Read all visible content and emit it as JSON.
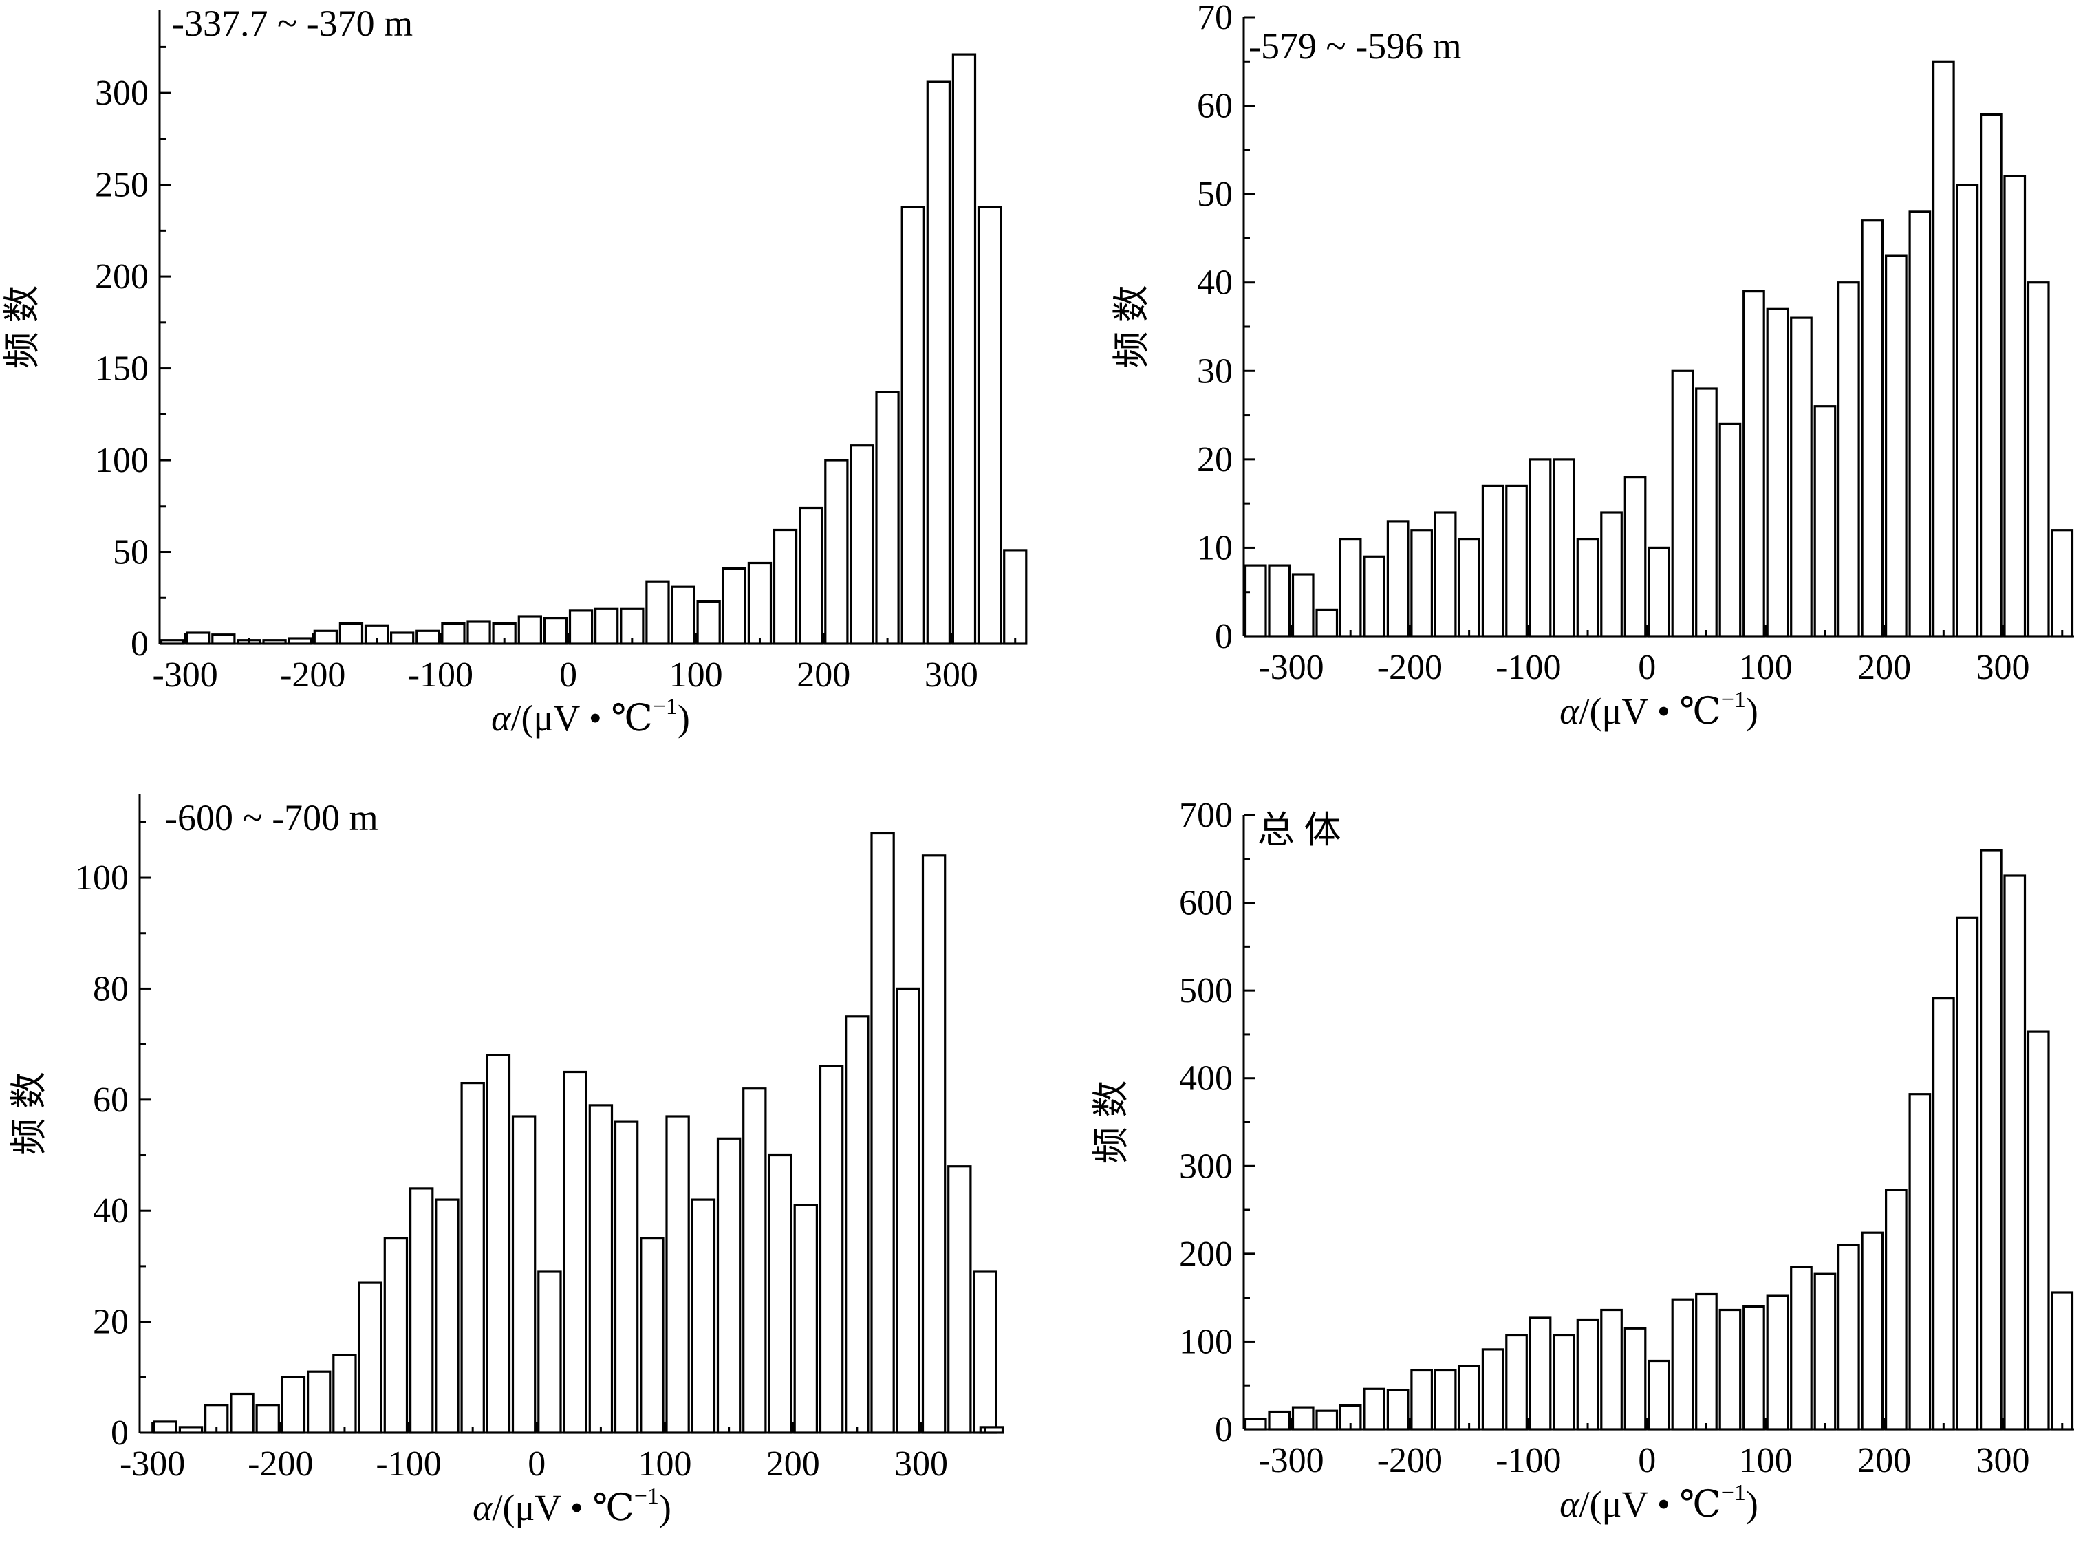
{
  "chart_data": [
    {
      "type": "bar",
      "title": "-337.7 ~ -370 m",
      "xlabel_prefix": "α",
      "xlabel_unit": "/(μV • ℃",
      "xlabel_exp": "−1",
      "xlabel_close": ")",
      "ylabel": "频 数",
      "xlim": [
        -320,
        355
      ],
      "ylim": [
        0,
        345
      ],
      "xticks": [
        -300,
        -200,
        -100,
        0,
        100,
        200,
        300
      ],
      "yticks": [
        0,
        50,
        100,
        150,
        200,
        250,
        300
      ],
      "bin_width": 20,
      "x": [
        -310,
        -290,
        -270,
        -250,
        -230,
        -210,
        -190,
        -170,
        -150,
        -130,
        -110,
        -90,
        -70,
        -50,
        -30,
        -10,
        10,
        30,
        50,
        70,
        90,
        110,
        130,
        150,
        170,
        190,
        210,
        230,
        250,
        270,
        290,
        310,
        330,
        350
      ],
      "values": [
        2,
        6,
        5,
        2,
        2,
        3,
        7,
        11,
        10,
        6,
        7,
        11,
        12,
        11,
        15,
        14,
        18,
        19,
        19,
        34,
        31,
        23,
        41,
        44,
        62,
        74,
        100,
        108,
        137,
        238,
        306,
        321,
        238,
        51
      ],
      "grid": false
    },
    {
      "type": "bar",
      "title": "-579 ~ -596 m",
      "xlabel_prefix": "α",
      "xlabel_unit": "/(μV • ℃",
      "xlabel_exp": "−1",
      "xlabel_close": ")",
      "ylabel": "频 数",
      "xlim": [
        -340,
        360
      ],
      "ylim": [
        0,
        70
      ],
      "xticks": [
        -300,
        -200,
        -100,
        0,
        100,
        200,
        300
      ],
      "yticks": [
        0,
        10,
        20,
        30,
        40,
        50,
        60,
        70
      ],
      "bin_width": 20,
      "x": [
        -330,
        -310,
        -290,
        -270,
        -250,
        -230,
        -210,
        -190,
        -170,
        -150,
        -130,
        -110,
        -90,
        -70,
        -50,
        -30,
        -10,
        10,
        30,
        50,
        70,
        90,
        110,
        130,
        150,
        170,
        190,
        210,
        230,
        250,
        270,
        290,
        310,
        330,
        350
      ],
      "values": [
        8,
        8,
        7,
        3,
        11,
        9,
        13,
        12,
        14,
        11,
        17,
        17,
        20,
        20,
        11,
        14,
        18,
        10,
        30,
        28,
        24,
        39,
        37,
        36,
        26,
        40,
        47,
        43,
        48,
        65,
        51,
        59,
        52,
        40,
        12
      ],
      "grid": false
    },
    {
      "type": "bar",
      "title": "-600 ~ -700 m",
      "xlabel_prefix": "α",
      "xlabel_unit": "/(μV • ℃",
      "xlabel_exp": "−1",
      "xlabel_close": ")",
      "ylabel": "频 数",
      "xlim": [
        -310,
        365
      ],
      "ylim": [
        0,
        115
      ],
      "xticks": [
        -300,
        -200,
        -100,
        0,
        100,
        200,
        300
      ],
      "yticks": [
        0,
        20,
        40,
        60,
        80,
        100
      ],
      "bin_width": 20,
      "x": [
        -290,
        -270,
        -250,
        -230,
        -210,
        -190,
        -170,
        -150,
        -130,
        -110,
        -90,
        -70,
        -50,
        -30,
        -10,
        10,
        30,
        50,
        70,
        90,
        110,
        130,
        150,
        170,
        190,
        210,
        230,
        250,
        270,
        290,
        310,
        330,
        350
      ],
      "values": [
        2,
        1,
        5,
        7,
        5,
        10,
        11,
        14,
        27,
        35,
        44,
        42,
        63,
        68,
        57,
        29,
        65,
        59,
        56,
        35,
        57,
        42,
        53,
        62,
        50,
        41,
        66,
        75,
        108,
        80,
        104,
        48,
        29
      ],
      "extra_bins": [
        {
          "x": 355,
          "value": 1
        }
      ],
      "grid": false
    },
    {
      "type": "bar",
      "title": "总 体",
      "xlabel_prefix": "α",
      "xlabel_unit": "/(μV • ℃",
      "xlabel_exp": "−1",
      "xlabel_close": ")",
      "ylabel": "频 数",
      "xlim": [
        -340,
        360
      ],
      "ylim": [
        0,
        700
      ],
      "xticks": [
        -300,
        -200,
        -100,
        0,
        100,
        200,
        300
      ],
      "yticks": [
        0,
        100,
        200,
        300,
        400,
        500,
        600,
        700
      ],
      "bin_width": 20,
      "x": [
        -330,
        -310,
        -290,
        -270,
        -250,
        -230,
        -210,
        -190,
        -170,
        -150,
        -130,
        -110,
        -90,
        -70,
        -50,
        -30,
        -10,
        10,
        30,
        50,
        70,
        90,
        110,
        130,
        150,
        170,
        190,
        210,
        230,
        250,
        270,
        290,
        310,
        330,
        350
      ],
      "values": [
        12,
        20,
        25,
        21,
        27,
        46,
        45,
        67,
        67,
        72,
        91,
        107,
        127,
        107,
        125,
        136,
        115,
        78,
        148,
        154,
        136,
        140,
        152,
        185,
        177,
        210,
        224,
        273,
        382,
        491,
        583,
        660,
        631,
        453,
        156
      ],
      "grid": false
    }
  ]
}
